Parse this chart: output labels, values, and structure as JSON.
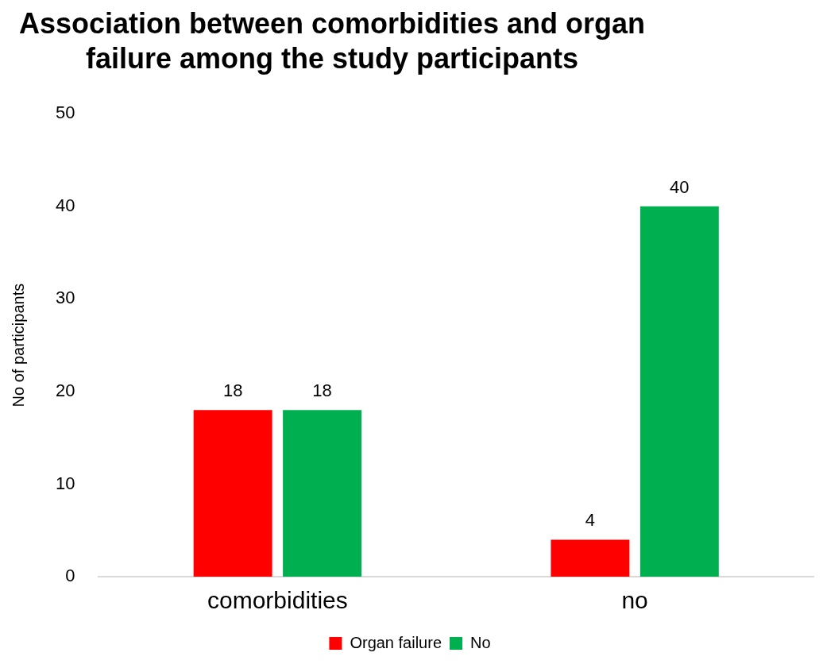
{
  "chart_data": {
    "type": "bar",
    "title": "Association between comorbidities and organ failure among the study participants",
    "ylabel": "No of participants",
    "categories": [
      "comorbidities",
      "no"
    ],
    "series": [
      {
        "name": "Organ failure",
        "color": "#ff0000",
        "values": [
          18,
          4
        ]
      },
      {
        "name": "No",
        "color": "#00b050",
        "values": [
          18,
          40
        ]
      }
    ],
    "ylim": [
      0,
      50
    ],
    "yticks": [
      0,
      10,
      20,
      30,
      40,
      50
    ],
    "grid": false,
    "legend": "bottom",
    "data_labels": true
  }
}
